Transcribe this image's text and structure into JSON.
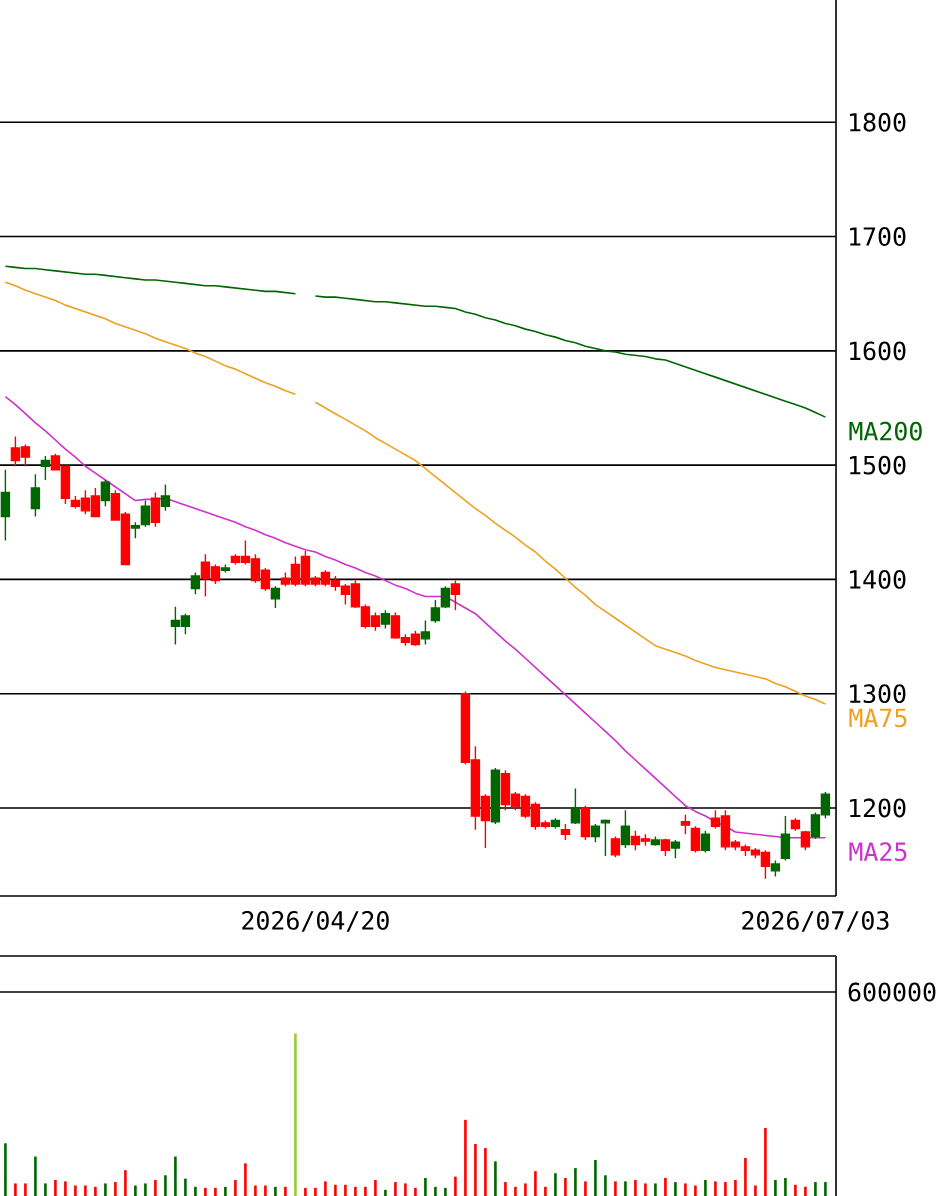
{
  "chart_data": [
    {
      "type": "candlestick",
      "categories": [
        null,
        null,
        null,
        null,
        null,
        null,
        null,
        null,
        null,
        null,
        null,
        null,
        null,
        null,
        null,
        null,
        null,
        null,
        null,
        null,
        null,
        null,
        null,
        null,
        null,
        null,
        null,
        null,
        null,
        null,
        null,
        "2026/04/20",
        null,
        null,
        null,
        null,
        null,
        null,
        null,
        null,
        null,
        null,
        null,
        null,
        null,
        null,
        null,
        null,
        null,
        null,
        null,
        null,
        null,
        null,
        null,
        null,
        null,
        null,
        null,
        null,
        null,
        null,
        null,
        null,
        null,
        null,
        null,
        null,
        null,
        null,
        null,
        null,
        null,
        null,
        null,
        null,
        null,
        null,
        null,
        null,
        null,
        "2026/07/03",
        null
      ],
      "ohlc": [
        [
          1455,
          1496,
          1434,
          1476
        ],
        [
          1515,
          1525,
          1499,
          1504
        ],
        [
          1516,
          1518,
          1499,
          1507
        ],
        [
          1462,
          1492,
          1455,
          1480
        ],
        [
          1499,
          1508,
          1487,
          1504
        ],
        [
          1508,
          1510,
          1496,
          1496
        ],
        [
          1499,
          1499,
          1466,
          1471
        ],
        [
          1469,
          1473,
          1462,
          1464
        ],
        [
          1471,
          1478,
          1457,
          1460
        ],
        [
          1473,
          1480,
          1455,
          1455
        ],
        [
          1469,
          1487,
          1464,
          1485
        ],
        [
          1475,
          1478,
          1452,
          1452
        ],
        [
          1457,
          1459,
          1413,
          1413
        ],
        [
          1445,
          1450,
          1436,
          1447
        ],
        [
          1448,
          1469,
          1446,
          1464
        ],
        [
          1471,
          1476,
          1446,
          1450
        ],
        [
          1464,
          1483,
          1460,
          1473
        ],
        [
          1359,
          1376,
          1343,
          1364
        ],
        [
          1359,
          1370,
          1352,
          1368
        ],
        [
          1392,
          1406,
          1387,
          1403
        ],
        [
          1415,
          1422,
          1385,
          1401
        ],
        [
          1411,
          1413,
          1396,
          1399
        ],
        [
          1408,
          1413,
          1406,
          1410
        ],
        [
          1420,
          1422,
          1413,
          1415
        ],
        [
          1420,
          1434,
          1413,
          1415
        ],
        [
          1418,
          1422,
          1397,
          1399
        ],
        [
          1408,
          1410,
          1390,
          1392
        ],
        [
          1383,
          1394,
          1375,
          1392
        ],
        [
          1401,
          1406,
          1394,
          1396
        ],
        [
          1413,
          1420,
          1394,
          1396
        ],
        [
          1420,
          1425,
          1394,
          1396
        ],
        [
          1401,
          1403,
          1394,
          1396
        ],
        [
          1406,
          1408,
          1394,
          1396
        ],
        [
          1399,
          1403,
          1390,
          1394
        ],
        [
          1394,
          1396,
          1378,
          1387
        ],
        [
          1396,
          1399,
          1375,
          1376
        ],
        [
          1376,
          1378,
          1357,
          1359
        ],
        [
          1368,
          1371,
          1355,
          1359
        ],
        [
          1361,
          1373,
          1357,
          1370
        ],
        [
          1368,
          1371,
          1348,
          1349
        ],
        [
          1349,
          1352,
          1342,
          1345
        ],
        [
          1352,
          1355,
          1342,
          1343
        ],
        [
          1348,
          1364,
          1343,
          1354
        ],
        [
          1364,
          1382,
          1362,
          1375
        ],
        [
          1376,
          1394,
          1375,
          1392
        ],
        [
          1396,
          1399,
          1373,
          1387
        ],
        [
          1300,
          1302,
          1238,
          1240
        ],
        [
          1242,
          1254,
          1181,
          1193
        ],
        [
          1210,
          1212,
          1165,
          1189
        ],
        [
          1188,
          1235,
          1186,
          1233
        ],
        [
          1230,
          1233,
          1198,
          1203
        ],
        [
          1212,
          1214,
          1198,
          1201
        ],
        [
          1210,
          1212,
          1191,
          1193
        ],
        [
          1203,
          1205,
          1181,
          1184
        ],
        [
          1187,
          1189,
          1182,
          1184
        ],
        [
          1184,
          1191,
          1182,
          1189
        ],
        [
          1181,
          1186,
          1172,
          1177
        ],
        [
          1187,
          1217,
          1186,
          1200
        ],
        [
          1200,
          1202,
          1172,
          1175
        ],
        [
          1175,
          1186,
          1170,
          1184
        ],
        [
          1187,
          1190,
          1158,
          1189
        ],
        [
          1173,
          1175,
          1157,
          1159
        ],
        [
          1168,
          1198,
          1165,
          1184
        ],
        [
          1175,
          1180,
          1163,
          1168
        ],
        [
          1173,
          1177,
          1167,
          1171
        ],
        [
          1168,
          1175,
          1167,
          1172
        ],
        [
          1172,
          1173,
          1158,
          1163
        ],
        [
          1165,
          1172,
          1156,
          1170
        ],
        [
          1188,
          1194,
          1177,
          1185
        ],
        [
          1182,
          1184,
          1161,
          1163
        ],
        [
          1163,
          1180,
          1161,
          1177
        ],
        [
          1191,
          1198,
          1182,
          1184
        ],
        [
          1193,
          1198,
          1163,
          1166
        ],
        [
          1170,
          1172,
          1163,
          1166
        ],
        [
          1166,
          1168,
          1158,
          1163
        ],
        [
          1163,
          1165,
          1156,
          1159
        ],
        [
          1161,
          1163,
          1138,
          1149
        ],
        [
          1145,
          1154,
          1140,
          1151
        ],
        [
          1156,
          1193,
          1154,
          1177
        ],
        [
          1189,
          1191,
          1180,
          1182
        ],
        [
          1179,
          1180,
          1163,
          1166
        ],
        [
          1175,
          1196,
          1173,
          1194
        ],
        [
          1194,
          1214,
          1191,
          1212
        ]
      ],
      "colors": [
        "#006600",
        "#ff0000",
        "#ff0000",
        "#006600",
        "#006600",
        "#ff0000",
        "#ff0000",
        "#ff0000",
        "#ff0000",
        "#ff0000",
        "#006600",
        "#ff0000",
        "#ff0000",
        "#006600",
        "#006600",
        "#ff0000",
        "#006600",
        "#006600",
        "#006600",
        "#006600",
        "#ff0000",
        "#ff0000",
        "#006600",
        "#ff0000",
        "#ff0000",
        "#ff0000",
        "#ff0000",
        "#006600",
        "#ff0000",
        "#ff0000",
        "#ff0000",
        "#ff0000",
        "#ff0000",
        "#ff0000",
        "#ff0000",
        "#ff0000",
        "#ff0000",
        "#ff0000",
        "#006600",
        "#ff0000",
        "#ff0000",
        "#ff0000",
        "#006600",
        "#006600",
        "#006600",
        "#ff0000",
        "#ff0000",
        "#ff0000",
        "#ff0000",
        "#006600",
        "#ff0000",
        "#ff0000",
        "#ff0000",
        "#ff0000",
        "#ff0000",
        "#006600",
        "#ff0000",
        "#006600",
        "#ff0000",
        "#006600",
        "#006600",
        "#ff0000",
        "#006600",
        "#ff0000",
        "#ff0000",
        "#006600",
        "#ff0000",
        "#006600",
        "#ff0000",
        "#ff0000",
        "#006600",
        "#ff0000",
        "#ff0000",
        "#ff0000",
        "#ff0000",
        "#ff0000",
        "#ff0000",
        "#006600",
        "#006600",
        "#ff0000",
        "#ff0000",
        "#006600",
        "#006600"
      ],
      "ylim": [
        1123,
        1907
      ],
      "yticks": [
        1200,
        1300,
        1400,
        1500,
        1600,
        1700,
        1800
      ],
      "grid": "y",
      "series": [
        {
          "name": "MA200",
          "type": "line",
          "color": "#006600",
          "values": [
            1674,
            1673,
            1672,
            1672,
            1671,
            1670,
            1669,
            1668,
            1667,
            1667,
            1666,
            1665,
            1664,
            1663,
            1662,
            1662,
            1661,
            1660,
            1659,
            1658,
            1657,
            1657,
            1656,
            1655,
            1654,
            1653,
            1652,
            1652,
            1651,
            1650,
            null,
            1648,
            1647,
            1647,
            1646,
            1645,
            1644,
            1643,
            1643,
            1642,
            1641,
            1640,
            1639,
            1639,
            1638,
            1637,
            1634,
            1632,
            1629,
            1627,
            1624,
            1622,
            1619,
            1617,
            1614,
            1612,
            1609,
            1607,
            1604,
            1602,
            1600,
            1599,
            1597,
            1596,
            1595,
            1593,
            1592,
            1589,
            1586,
            1583,
            1580,
            1577,
            1574,
            1571,
            1568,
            1565,
            1562,
            1559,
            1556,
            1553,
            1550,
            1546,
            1542
          ]
        },
        {
          "name": "MA75",
          "type": "line",
          "color": "#f0a020",
          "values": [
            1660,
            1657,
            1653,
            1650,
            1647,
            1644,
            1640,
            1637,
            1634,
            1631,
            1628,
            1624,
            1621,
            1618,
            1615,
            1611,
            1608,
            1605,
            1602,
            1598,
            1595,
            1591,
            1587,
            1584,
            1580,
            1576,
            1572,
            1569,
            1565,
            1562,
            null,
            1555,
            1550,
            1545,
            1540,
            1535,
            1530,
            1524,
            1519,
            1514,
            1509,
            1504,
            1497,
            1490,
            1483,
            1476,
            1469,
            1462,
            1456,
            1449,
            1443,
            1437,
            1430,
            1424,
            1416,
            1409,
            1401,
            1393,
            1386,
            1378,
            1372,
            1366,
            1360,
            1354,
            1348,
            1342,
            1339,
            1336,
            1333,
            1329,
            1326,
            1323,
            1321,
            1319,
            1317,
            1315,
            1313,
            1309,
            1306,
            1302,
            1298,
            1295,
            1291
          ]
        },
        {
          "name": "MA25",
          "type": "line",
          "color": "#cc33cc",
          "values": [
            1560,
            1553,
            1545,
            1537,
            1530,
            1522,
            1514,
            1507,
            1499,
            1493,
            1487,
            1481,
            1475,
            1469,
            1470,
            1470,
            1471,
            1468,
            1465,
            1462,
            1459,
            1456,
            1453,
            1450,
            1446,
            1443,
            1439,
            1436,
            1432,
            1429,
            1426,
            1424,
            1420,
            1417,
            1413,
            1410,
            1406,
            1403,
            1399,
            1395,
            1392,
            1388,
            1385,
            1385,
            1385,
            1380,
            1375,
            1370,
            1362,
            1354,
            1346,
            1339,
            1331,
            1323,
            1315,
            1307,
            1299,
            1291,
            1283,
            1275,
            1267,
            1259,
            1250,
            1242,
            1234,
            1226,
            1218,
            1210,
            1202,
            1197,
            1193,
            1188,
            1184,
            1179,
            1178,
            1177,
            1176,
            1175,
            1174,
            1174,
            1174,
            1174,
            1174
          ]
        }
      ]
    },
    {
      "type": "bar",
      "categories": [
        null,
        null,
        null,
        null,
        null,
        null,
        null,
        null,
        null,
        null,
        null,
        null,
        null,
        null,
        null,
        null,
        null,
        null,
        null,
        null,
        null,
        null,
        null,
        null,
        null,
        null,
        null,
        null,
        null,
        null,
        null,
        "2026/04/20",
        null,
        null,
        null,
        null,
        null,
        null,
        null,
        null,
        null,
        null,
        null,
        null,
        null,
        null,
        null,
        null,
        null,
        null,
        null,
        null,
        null,
        null,
        null,
        null,
        null,
        null,
        null,
        null,
        null,
        null,
        null,
        null,
        null,
        null,
        null,
        null,
        null,
        null,
        null,
        null,
        null,
        null,
        null,
        null,
        null,
        null,
        null,
        null,
        null,
        "2026/07/03",
        null
      ],
      "values": [
        155000,
        37000,
        37000,
        116000,
        37000,
        47000,
        43000,
        31000,
        31000,
        27000,
        37000,
        41000,
        76000,
        31000,
        37000,
        47000,
        61000,
        116000,
        51000,
        27000,
        24000,
        24000,
        27000,
        47000,
        96000,
        31000,
        31000,
        27000,
        27000,
        478000,
        24000,
        24000,
        43000,
        33000,
        33000,
        27000,
        27000,
        47000,
        18000,
        41000,
        37000,
        24000,
        53000,
        27000,
        24000,
        57000,
        224000,
        153000,
        141000,
        102000,
        41000,
        27000,
        37000,
        73000,
        27000,
        67000,
        53000,
        82000,
        43000,
        106000,
        61000,
        43000,
        43000,
        47000,
        37000,
        37000,
        53000,
        41000,
        37000,
        31000,
        47000,
        43000,
        41000,
        47000,
        112000,
        31000,
        200000,
        47000,
        53000,
        33000,
        27000,
        41000,
        41000
      ],
      "colors": [
        "#006600",
        "#ff0000",
        "#ff0000",
        "#006600",
        "#006600",
        "#ff0000",
        "#ff0000",
        "#ff0000",
        "#ff0000",
        "#ff0000",
        "#006600",
        "#ff0000",
        "#ff0000",
        "#006600",
        "#006600",
        "#ff0000",
        "#006600",
        "#006600",
        "#006600",
        "#006600",
        "#ff0000",
        "#ff0000",
        "#006600",
        "#ff0000",
        "#ff0000",
        "#ff0000",
        "#ff0000",
        "#006600",
        "#ff0000",
        "#99cc33",
        "#ff0000",
        "#ff0000",
        "#ff0000",
        "#ff0000",
        "#ff0000",
        "#ff0000",
        "#ff0000",
        "#ff0000",
        "#006600",
        "#ff0000",
        "#ff0000",
        "#ff0000",
        "#006600",
        "#006600",
        "#006600",
        "#ff0000",
        "#ff0000",
        "#ff0000",
        "#ff0000",
        "#006600",
        "#ff0000",
        "#ff0000",
        "#ff0000",
        "#ff0000",
        "#ff0000",
        "#006600",
        "#ff0000",
        "#006600",
        "#ff0000",
        "#006600",
        "#006600",
        "#ff0000",
        "#006600",
        "#ff0000",
        "#ff0000",
        "#006600",
        "#ff0000",
        "#006600",
        "#ff0000",
        "#ff0000",
        "#006600",
        "#ff0000",
        "#ff0000",
        "#ff0000",
        "#ff0000",
        "#ff0000",
        "#ff0000",
        "#006600",
        "#006600",
        "#ff0000",
        "#ff0000",
        "#006600",
        "#006600"
      ],
      "ylim": [
        0,
        706000
      ],
      "yticks": [
        600000
      ],
      "grid": "y",
      "tick_labels": "y"
    }
  ]
}
